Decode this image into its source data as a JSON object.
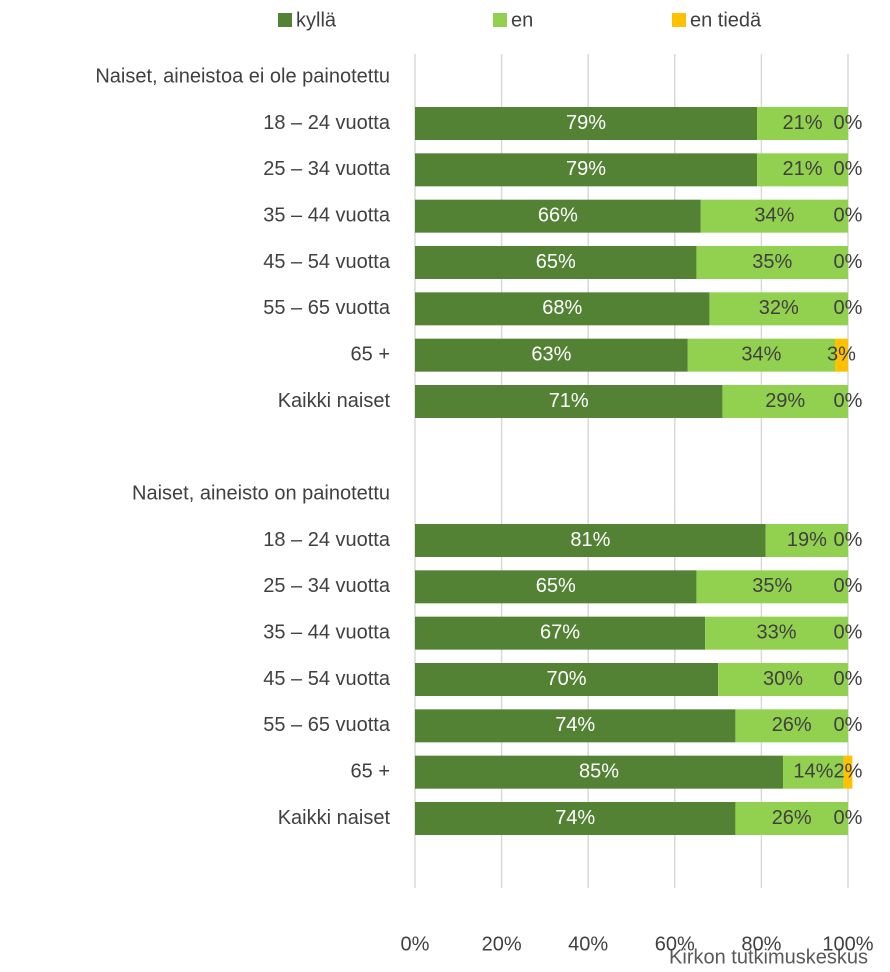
{
  "chart_data": {
    "type": "stacked_barh",
    "source": "Kirkon tutkimuskeskus",
    "categories": [
      "Naiset, aineistoa ei ole painotettu",
      "18 – 24 vuotta",
      "25 – 34 vuotta",
      "35 – 44 vuotta",
      "45 – 54 vuotta",
      "55 – 65 vuotta",
      "65 +",
      "Kaikki naiset",
      null,
      "Naiset, aineisto on painotettu",
      "18 – 24 vuotta",
      "25 – 34 vuotta",
      "35 – 44 vuotta",
      "45 – 54 vuotta",
      "55 – 65 vuotta",
      "65 +",
      "Kaikki naiset",
      null
    ],
    "series": [
      {
        "name": "kyllä",
        "color": "#548235",
        "label_color": "#ffffff",
        "values": [
          null,
          79,
          79,
          66,
          65,
          68,
          63,
          71,
          null,
          null,
          81,
          65,
          67,
          70,
          74,
          85,
          74,
          null
        ],
        "value_labels": [
          null,
          "79%",
          "79%",
          "66%",
          "65%",
          "68%",
          "63%",
          "71%",
          null,
          null,
          "81%",
          "65%",
          "67%",
          "70%",
          "74%",
          "85%",
          "74%",
          null
        ]
      },
      {
        "name": "en",
        "color": "#92d050",
        "label_color": "#404040",
        "values": [
          null,
          21,
          21,
          34,
          35,
          32,
          34,
          29,
          null,
          null,
          19,
          35,
          33,
          30,
          26,
          14,
          26,
          null
        ],
        "value_labels": [
          null,
          "21%",
          "21%",
          "34%",
          "35%",
          "32%",
          "34%",
          "29%",
          null,
          null,
          "19%",
          "35%",
          "33%",
          "30%",
          "26%",
          "14%",
          "26%",
          null
        ]
      },
      {
        "name": "en tiedä",
        "color": "#ffc000",
        "label_color": "#404040",
        "values": [
          null,
          0,
          0,
          0,
          0,
          0,
          3,
          0,
          null,
          null,
          0,
          0,
          0,
          0,
          0,
          2,
          0,
          null
        ],
        "value_labels": [
          null,
          "0%",
          "0%",
          "0%",
          "0%",
          "0%",
          "3%",
          "0%",
          null,
          null,
          "0%",
          "0%",
          "0%",
          "0%",
          "0%",
          "2%",
          "0%",
          null
        ]
      }
    ],
    "xlim": [
      0,
      100
    ],
    "xticks": [
      {
        "value": 0,
        "label": "0%"
      },
      {
        "value": 20,
        "label": "20%"
      },
      {
        "value": 40,
        "label": "40%"
      },
      {
        "value": 60,
        "label": "60%"
      },
      {
        "value": 80,
        "label": "80%"
      },
      {
        "value": 100,
        "label": "100%"
      }
    ],
    "grid": true,
    "legend": "top"
  }
}
